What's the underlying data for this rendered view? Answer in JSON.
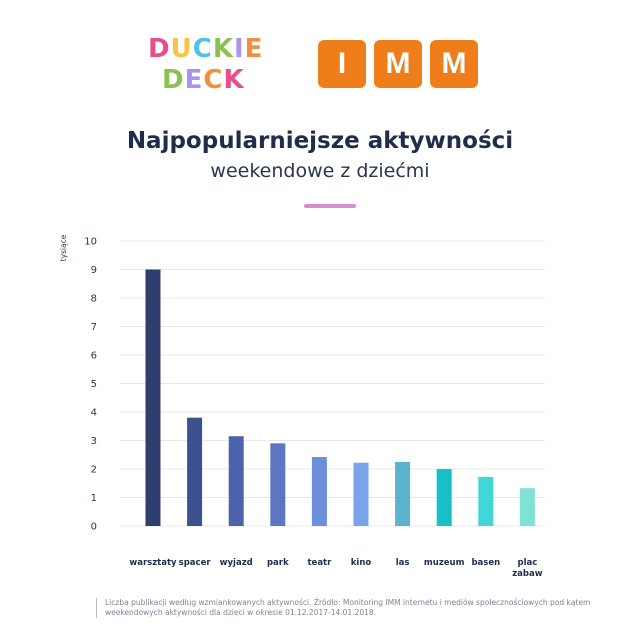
{
  "logos": {
    "duckie_line1": "DUCKIE",
    "duckie_line2": "DECK",
    "imm_letters": [
      "I",
      "M",
      "M"
    ],
    "imm_color": "#ef7d1a",
    "duckie_colors": [
      "#e94e8a",
      "#f6c640",
      "#4fc1e9",
      "#8cc152",
      "#ac92ec",
      "#f58d3a"
    ]
  },
  "header": {
    "title": "Najpopularniejsze aktywności",
    "subtitle": "weekendowe z dziećmi",
    "divider_color": "#d58fd0"
  },
  "chart_data": {
    "type": "bar",
    "ylabel": "tysiące",
    "ylim": [
      0,
      10
    ],
    "yticks": [
      0,
      1,
      2,
      3,
      4,
      5,
      6,
      7,
      8,
      9,
      10
    ],
    "grid": true,
    "categories": [
      "warsztaty",
      "spacer",
      "wyjazd",
      "park",
      "teatr",
      "kino",
      "las",
      "muzeum",
      "basen",
      "plac zabaw"
    ],
    "category_lines": [
      [
        "warsztaty"
      ],
      [
        "spacer"
      ],
      [
        "wyjazd"
      ],
      [
        "park"
      ],
      [
        "teatr"
      ],
      [
        "kino"
      ],
      [
        "las"
      ],
      [
        "muzeum"
      ],
      [
        "basen"
      ],
      [
        "plac",
        "zabaw"
      ]
    ],
    "values": [
      9.0,
      3.8,
      3.15,
      2.9,
      2.42,
      2.22,
      2.25,
      2.0,
      1.72,
      1.33
    ],
    "colors": [
      "#2f3e6e",
      "#3d5090",
      "#4c63ab",
      "#5c76c4",
      "#6c8fdc",
      "#7aa4ec",
      "#5bb3cc",
      "#19bfc6",
      "#3fd8d6",
      "#7fe3d3"
    ]
  },
  "footnote": "Liczba publikacji według wzmiankowanych aktywności. Źródło: Monitoring IMM internetu i mediów społecznościowych pod kątem weekendowych aktywności dla dzieci w okresie 01.12.2017-14.01.2018."
}
